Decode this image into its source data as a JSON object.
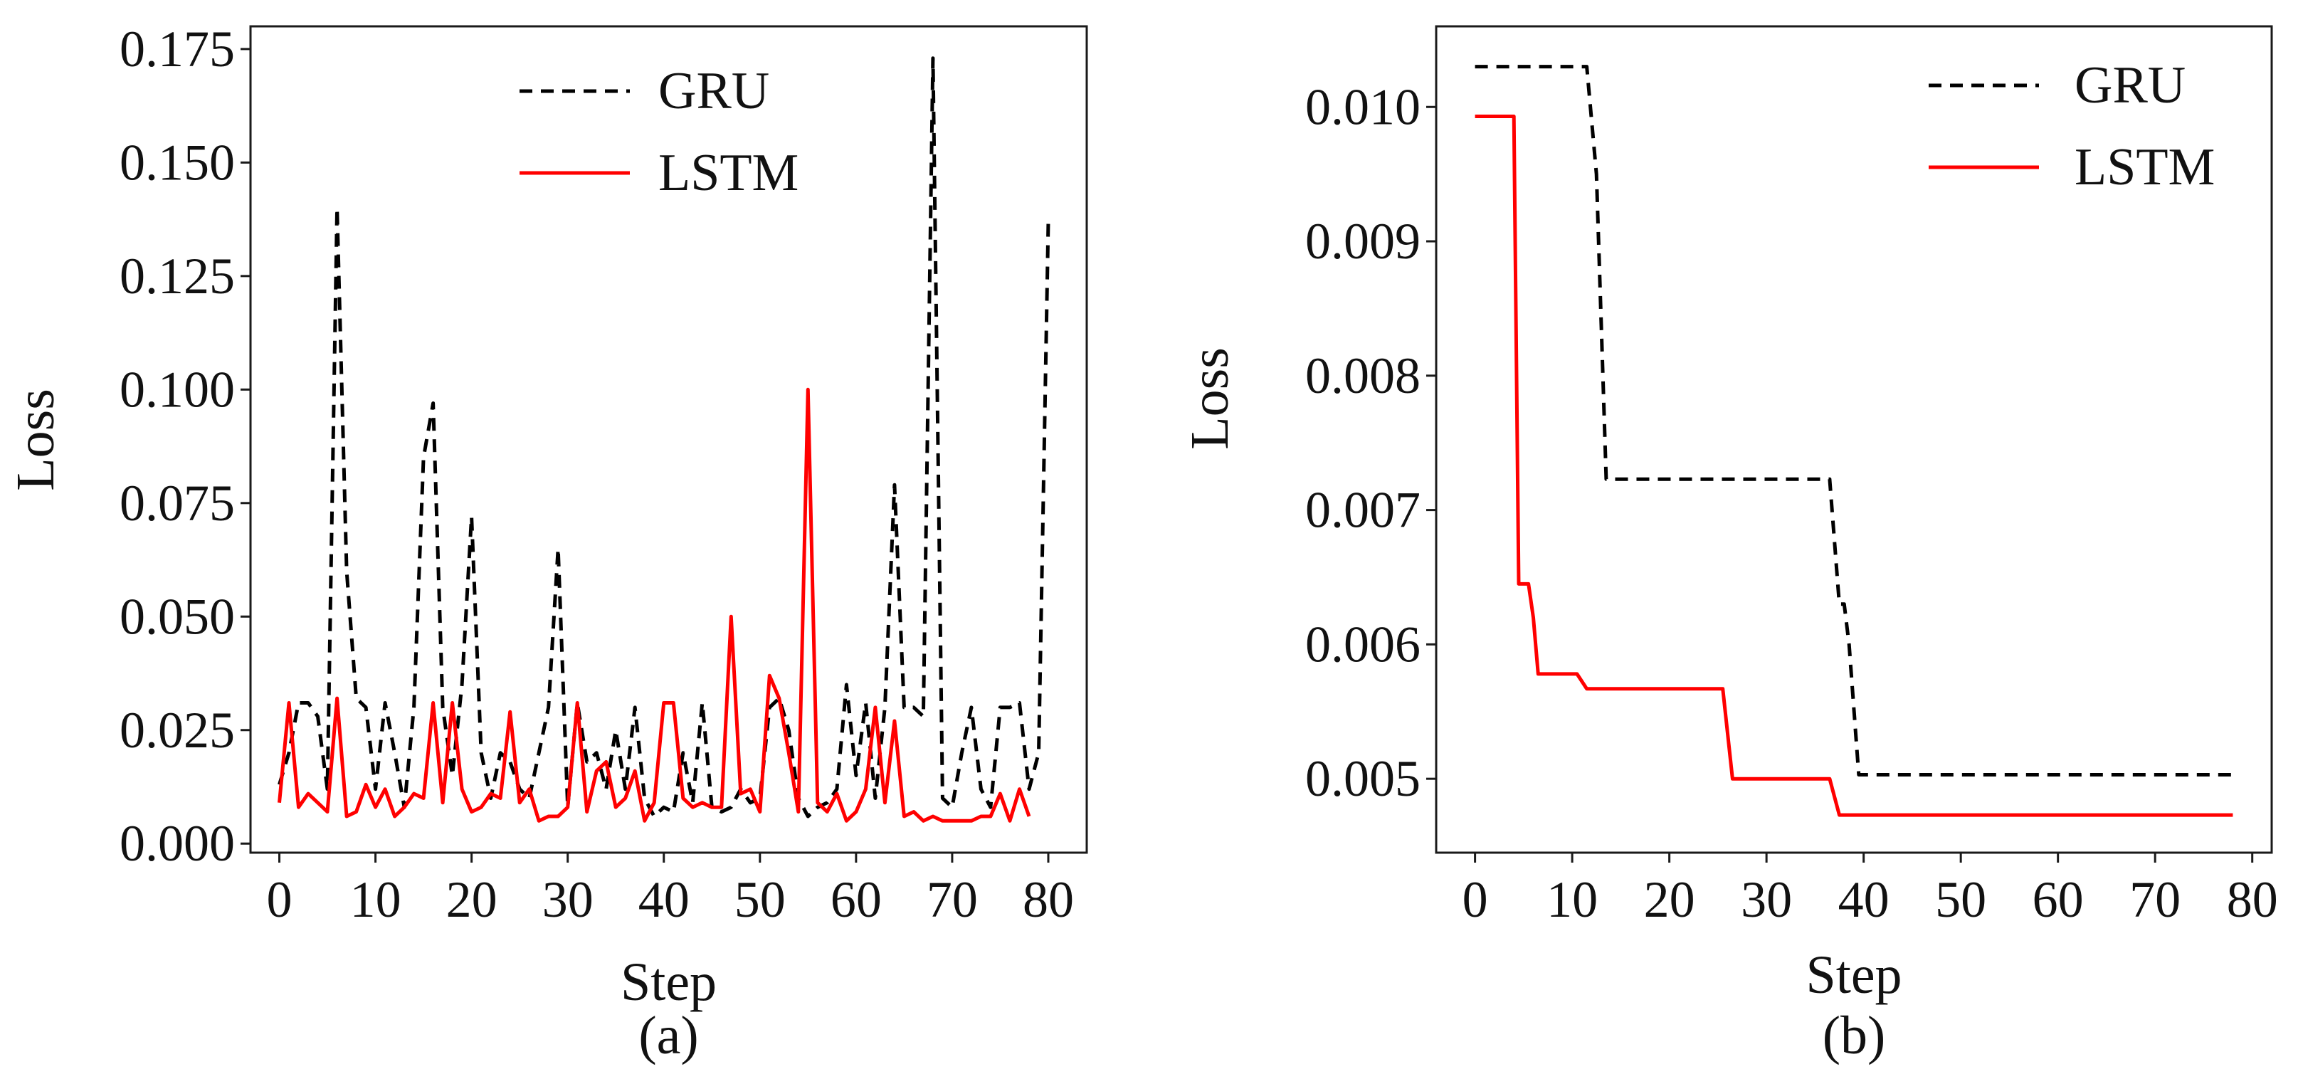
{
  "chart_data": [
    {
      "panel": "(a)",
      "type": "line",
      "title": "",
      "xlabel": "Step",
      "ylabel": "Loss",
      "xlim": [
        -3,
        84
      ],
      "ylim": [
        -0.002,
        0.18
      ],
      "xticks": [
        0,
        10,
        20,
        30,
        40,
        50,
        60,
        70,
        80
      ],
      "xtick_labels": [
        "0",
        "10",
        "20",
        "30",
        "40",
        "50",
        "60",
        "70",
        "80"
      ],
      "yticks": [
        0.0,
        0.025,
        0.05,
        0.075,
        0.1,
        0.125,
        0.15,
        0.175
      ],
      "ytick_labels": [
        "0.000",
        "0.025",
        "0.050",
        "0.075",
        "0.100",
        "0.125",
        "0.150",
        "0.175"
      ],
      "grid": false,
      "legend_position": "top-center",
      "series": [
        {
          "name": "GRU",
          "color": "#000000",
          "style": "dashed",
          "x": [
            0,
            1,
            2,
            3,
            4,
            5,
            6,
            7,
            8,
            9,
            10,
            11,
            12,
            13,
            14,
            15,
            16,
            17,
            18,
            19,
            20,
            21,
            22,
            23,
            24,
            25,
            26,
            27,
            28,
            29,
            30,
            31,
            32,
            33,
            34,
            35,
            36,
            37,
            38,
            39,
            40,
            41,
            42,
            43,
            44,
            45,
            46,
            47,
            48,
            49,
            50,
            51,
            52,
            53,
            54,
            55,
            56,
            57,
            58,
            59,
            60,
            61,
            62,
            63,
            64,
            65,
            66,
            67,
            68,
            69,
            70,
            71,
            72,
            73,
            74,
            75,
            76,
            77,
            78,
            79,
            80
          ],
          "y": [
            0.013,
            0.02,
            0.031,
            0.031,
            0.028,
            0.012,
            0.14,
            0.06,
            0.032,
            0.03,
            0.012,
            0.031,
            0.02,
            0.008,
            0.03,
            0.085,
            0.097,
            0.03,
            0.015,
            0.035,
            0.072,
            0.02,
            0.01,
            0.02,
            0.018,
            0.012,
            0.01,
            0.02,
            0.03,
            0.065,
            0.008,
            0.031,
            0.018,
            0.02,
            0.012,
            0.025,
            0.012,
            0.03,
            0.01,
            0.006,
            0.008,
            0.007,
            0.02,
            0.009,
            0.031,
            0.008,
            0.007,
            0.008,
            0.012,
            0.009,
            0.01,
            0.03,
            0.032,
            0.025,
            0.01,
            0.006,
            0.008,
            0.009,
            0.012,
            0.035,
            0.015,
            0.031,
            0.01,
            0.03,
            0.079,
            0.03,
            0.03,
            0.028,
            0.173,
            0.01,
            0.008,
            0.02,
            0.03,
            0.012,
            0.008,
            0.03,
            0.03,
            0.031,
            0.012,
            0.02,
            0.137
          ]
        },
        {
          "name": "LSTM",
          "color": "#ff0000",
          "style": "solid",
          "x": [
            0,
            1,
            2,
            3,
            4,
            5,
            6,
            7,
            8,
            9,
            10,
            11,
            12,
            13,
            14,
            15,
            16,
            17,
            18,
            19,
            20,
            21,
            22,
            23,
            24,
            25,
            26,
            27,
            28,
            29,
            30,
            31,
            32,
            33,
            34,
            35,
            36,
            37,
            38,
            39,
            40,
            41,
            42,
            43,
            44,
            45,
            46,
            47,
            48,
            49,
            50,
            51,
            52,
            53,
            54,
            55,
            56,
            57,
            58,
            59,
            60,
            61,
            62,
            63,
            64,
            65,
            66,
            67,
            68,
            69,
            70,
            71,
            72,
            73,
            74,
            75,
            76,
            77,
            78
          ],
          "y": [
            0.009,
            0.031,
            0.008,
            0.011,
            0.009,
            0.007,
            0.032,
            0.006,
            0.007,
            0.013,
            0.008,
            0.012,
            0.006,
            0.008,
            0.011,
            0.01,
            0.031,
            0.009,
            0.031,
            0.012,
            0.007,
            0.008,
            0.011,
            0.01,
            0.029,
            0.009,
            0.012,
            0.005,
            0.006,
            0.006,
            0.008,
            0.031,
            0.007,
            0.016,
            0.018,
            0.008,
            0.01,
            0.016,
            0.005,
            0.009,
            0.031,
            0.031,
            0.01,
            0.008,
            0.009,
            0.008,
            0.008,
            0.05,
            0.011,
            0.012,
            0.007,
            0.037,
            0.032,
            0.02,
            0.007,
            0.1,
            0.009,
            0.007,
            0.011,
            0.005,
            0.007,
            0.012,
            0.03,
            0.009,
            0.027,
            0.006,
            0.007,
            0.005,
            0.006,
            0.005,
            0.005,
            0.005,
            0.005,
            0.006,
            0.006,
            0.011,
            0.005,
            0.012,
            0.006
          ]
        }
      ]
    },
    {
      "panel": "(b)",
      "type": "line",
      "title": "",
      "xlabel": "Step",
      "ylabel": "Loss",
      "xlim": [
        -4,
        82
      ],
      "ylim": [
        0.00445,
        0.0106
      ],
      "xticks": [
        0,
        10,
        20,
        30,
        40,
        50,
        60,
        70,
        80
      ],
      "xtick_labels": [
        "0",
        "10",
        "20",
        "30",
        "40",
        "50",
        "60",
        "70",
        "80"
      ],
      "yticks": [
        0.005,
        0.006,
        0.007,
        0.008,
        0.009,
        0.01
      ],
      "ytick_labels": [
        "0.005",
        "0.006",
        "0.007",
        "0.008",
        "0.009",
        "0.010"
      ],
      "grid": false,
      "legend_position": "top-right",
      "series": [
        {
          "name": "GRU",
          "color": "#000000",
          "style": "dashed",
          "x": [
            0,
            11.5,
            12.5,
            13.5,
            36.5,
            37.5,
            38,
            38.5,
            39.5,
            78
          ],
          "y": [
            0.0103,
            0.0103,
            0.0095,
            0.00723,
            0.00723,
            0.0063,
            0.0063,
            0.006,
            0.00503,
            0.00503
          ]
        },
        {
          "name": "LSTM",
          "color": "#ff0000",
          "style": "solid",
          "x": [
            0,
            4,
            4.5,
            5.5,
            6,
            6.5,
            10.5,
            11.5,
            25.5,
            26.5,
            36.5,
            37.5,
            78
          ],
          "y": [
            0.00993,
            0.00993,
            0.00645,
            0.00645,
            0.0062,
            0.00578,
            0.00578,
            0.00567,
            0.00567,
            0.005,
            0.005,
            0.00473,
            0.00473
          ]
        }
      ]
    }
  ]
}
